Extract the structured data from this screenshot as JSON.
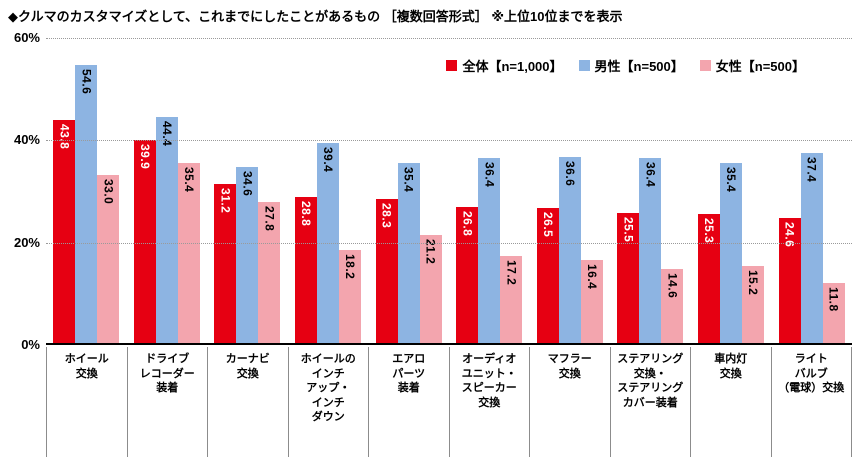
{
  "title": "◆クルマのカスタマイズとして、これまでにしたことがあるもの ［複数回答形式］ ※上位10位までを表示",
  "chart_data": {
    "type": "bar",
    "title": "クルマのカスタマイズとして、これまでにしたことがあるもの",
    "note": "複数回答形式・上位10位までを表示",
    "ylabel": "",
    "xlabel": "",
    "ylim": [
      0,
      60
    ],
    "y_axis": {
      "ticks": [
        {
          "label": "0%",
          "value": 0
        },
        {
          "label": "20%",
          "value": 20
        },
        {
          "label": "40%",
          "value": 40
        },
        {
          "label": "60%",
          "value": 60
        }
      ],
      "grid": "dotted"
    },
    "legend_position": "top-right",
    "categories": [
      {
        "label": "ホイール交換",
        "lines": [
          "ホイール",
          "交換"
        ]
      },
      {
        "label": "ドライブレコーダー装着",
        "lines": [
          "ドライブ",
          "レコーダー",
          "装着"
        ]
      },
      {
        "label": "カーナビ交換",
        "lines": [
          "カーナビ",
          "交換"
        ]
      },
      {
        "label": "ホイールのインチアップ・インチダウン",
        "lines": [
          "ホイールの",
          "インチ",
          "アップ・",
          "インチ",
          "ダウン"
        ]
      },
      {
        "label": "エアロパーツ装着",
        "lines": [
          "エアロ",
          "パーツ",
          "装着"
        ]
      },
      {
        "label": "オーディオユニット・スピーカー交換",
        "lines": [
          "オーディオ",
          "ユニット・",
          "スピーカー",
          "交換"
        ]
      },
      {
        "label": "マフラー交換",
        "lines": [
          "マフラー",
          "交換"
        ]
      },
      {
        "label": "ステアリング交換・ステアリングカバー装着",
        "lines": [
          "ステアリング",
          "交換・",
          "ステアリング",
          "カバー装着"
        ]
      },
      {
        "label": "車内灯交換",
        "lines": [
          "車内灯",
          "交換"
        ]
      },
      {
        "label": "ライトバルブ（電球）交換",
        "lines": [
          "ライト",
          "バルブ",
          "（電球）交換"
        ]
      }
    ],
    "series": [
      {
        "name": "全体【n=1,000】",
        "color": "#e60012",
        "label_color": "#ffffff",
        "values": [
          43.8,
          39.9,
          31.2,
          28.8,
          28.3,
          26.8,
          26.5,
          25.5,
          25.3,
          24.6
        ]
      },
      {
        "name": "男性【n=500】",
        "color": "#8db4e2",
        "label_color": "#000000",
        "values": [
          54.6,
          44.4,
          34.6,
          39.4,
          35.4,
          36.4,
          36.6,
          36.4,
          35.4,
          37.4
        ]
      },
      {
        "name": "女性【n=500】",
        "color": "#f3a5ae",
        "label_color": "#000000",
        "values": [
          33.0,
          35.4,
          27.8,
          18.2,
          21.2,
          17.2,
          16.4,
          14.6,
          15.2,
          11.8
        ]
      }
    ]
  }
}
